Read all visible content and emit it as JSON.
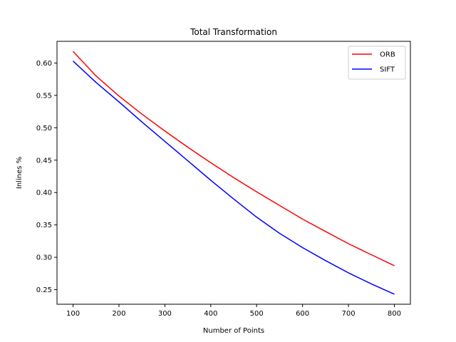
{
  "chart_data": {
    "type": "line",
    "title": "Total Transformation",
    "xlabel": "Number of Points",
    "ylabel": "Inlines %",
    "x": [
      100,
      150,
      200,
      250,
      300,
      350,
      400,
      450,
      500,
      550,
      600,
      650,
      700,
      750,
      800
    ],
    "xlim": [
      65,
      835
    ],
    "ylim": [
      0.2275,
      0.6335
    ],
    "xticks": [
      100,
      200,
      300,
      400,
      500,
      600,
      700,
      800
    ],
    "yticks": [
      0.25,
      0.3,
      0.35,
      0.4,
      0.45,
      0.5,
      0.55,
      0.6
    ],
    "grid": false,
    "legend_position": "top-right",
    "series": [
      {
        "name": "ORB",
        "color": "#ff0000",
        "values": [
          0.618,
          0.58,
          0.549,
          0.521,
          0.495,
          0.47,
          0.446,
          0.423,
          0.401,
          0.38,
          0.359,
          0.34,
          0.321,
          0.304,
          0.287
        ]
      },
      {
        "name": "SIFT",
        "color": "#0000ff",
        "values": [
          0.603,
          0.57,
          0.54,
          0.509,
          0.479,
          0.449,
          0.419,
          0.39,
          0.362,
          0.337,
          0.315,
          0.295,
          0.276,
          0.259,
          0.243
        ]
      }
    ]
  }
}
